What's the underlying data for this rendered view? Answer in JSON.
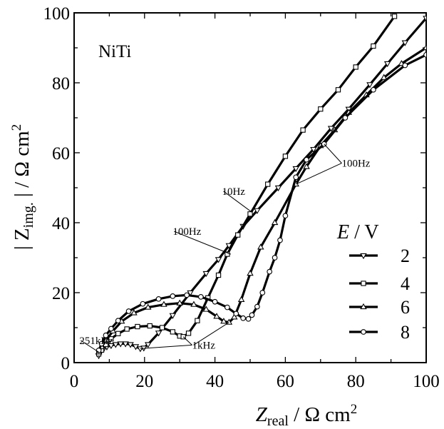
{
  "chart_data": {
    "type": "line",
    "title": "",
    "panel_label": "NiTi",
    "xlabel": {
      "main": "Z",
      "sub": "real",
      "unit": " / Ω cm",
      "sup": "2"
    },
    "ylabel": {
      "pre": "| Z",
      "sub": "img.",
      "post": " | / Ω cm",
      "sup": "2"
    },
    "xlim": [
      0,
      100
    ],
    "ylim": [
      0,
      100
    ],
    "x_ticks": [
      0,
      20,
      40,
      60,
      80,
      100
    ],
    "y_ticks": [
      0,
      20,
      40,
      60,
      80,
      100
    ],
    "grid": false,
    "legend": {
      "title_var": "E",
      "title_unit": " / V",
      "position": "right"
    },
    "series": [
      {
        "name": "2",
        "marker": "triangle-down",
        "points": [
          [
            7.0,
            2.0
          ],
          [
            7.5,
            3.0
          ],
          [
            8.3,
            3.8
          ],
          [
            9.3,
            4.5
          ],
          [
            10.5,
            4.9
          ],
          [
            11.8,
            5.2
          ],
          [
            13.2,
            5.4
          ],
          [
            14.6,
            5.4
          ],
          [
            16.0,
            5.2
          ],
          [
            17.5,
            4.6
          ],
          [
            18.8,
            4.0
          ],
          [
            19.8,
            4.2
          ],
          [
            21.0,
            5.2
          ],
          [
            24.0,
            8.5
          ],
          [
            28.0,
            13.5
          ],
          [
            33.0,
            20.0
          ],
          [
            37.5,
            25.5
          ],
          [
            41.0,
            29.5
          ],
          [
            44.0,
            33.5
          ],
          [
            48.0,
            39.0
          ],
          [
            52.0,
            43.5
          ],
          [
            58.0,
            50.0
          ],
          [
            63.0,
            55.5
          ],
          [
            68.0,
            61.0
          ],
          [
            73.0,
            67.0
          ],
          [
            78.0,
            72.5
          ],
          [
            84.0,
            79.5
          ],
          [
            89.0,
            85.5
          ],
          [
            94.0,
            91.5
          ],
          [
            100.0,
            98.5
          ]
        ]
      },
      {
        "name": "4",
        "marker": "square",
        "points": [
          [
            7.0,
            2.5
          ],
          [
            7.8,
            3.6
          ],
          [
            9.0,
            5.2
          ],
          [
            10.5,
            6.8
          ],
          [
            12.5,
            8.3
          ],
          [
            15.0,
            9.6
          ],
          [
            18.0,
            10.3
          ],
          [
            21.5,
            10.5
          ],
          [
            25.0,
            10.0
          ],
          [
            28.0,
            8.8
          ],
          [
            30.0,
            7.6
          ],
          [
            31.0,
            7.4
          ],
          [
            32.5,
            8.4
          ],
          [
            35.0,
            12.0
          ],
          [
            38.0,
            18.5
          ],
          [
            41.0,
            25.0
          ],
          [
            43.5,
            31.0
          ],
          [
            46.5,
            36.5
          ],
          [
            50.0,
            42.5
          ],
          [
            55.0,
            51.0
          ],
          [
            60.0,
            59.0
          ],
          [
            65.0,
            66.5
          ],
          [
            70.0,
            72.5
          ],
          [
            75.0,
            78.0
          ],
          [
            80.0,
            84.5
          ],
          [
            85.0,
            90.5
          ],
          [
            91.0,
            99.0
          ]
        ]
      },
      {
        "name": "6",
        "marker": "triangle-up",
        "points": [
          [
            7.0,
            3.0
          ],
          [
            7.8,
            4.5
          ],
          [
            9.2,
            6.5
          ],
          [
            11.0,
            9.0
          ],
          [
            13.5,
            11.8
          ],
          [
            17.0,
            14.2
          ],
          [
            21.0,
            15.8
          ],
          [
            25.5,
            16.6
          ],
          [
            30.0,
            17.0
          ],
          [
            34.0,
            16.6
          ],
          [
            37.5,
            15.2
          ],
          [
            40.5,
            13.2
          ],
          [
            42.5,
            11.8
          ],
          [
            44.0,
            11.5
          ],
          [
            45.5,
            13.0
          ],
          [
            47.5,
            18.0
          ],
          [
            50.0,
            25.5
          ],
          [
            53.0,
            33.0
          ],
          [
            57.0,
            40.0
          ],
          [
            63.0,
            51.0
          ],
          [
            66.0,
            56.0
          ],
          [
            70.0,
            62.0
          ],
          [
            74.0,
            66.5
          ],
          [
            78.0,
            71.5
          ],
          [
            83.0,
            76.5
          ],
          [
            88.0,
            81.5
          ],
          [
            93.0,
            85.5
          ],
          [
            100.0,
            90.0
          ]
        ]
      },
      {
        "name": "8",
        "marker": "circle",
        "points": [
          [
            7.0,
            3.5
          ],
          [
            7.8,
            5.4
          ],
          [
            9.0,
            7.8
          ],
          [
            10.5,
            9.7
          ],
          [
            12.5,
            12.0
          ],
          [
            15.5,
            14.7
          ],
          [
            19.5,
            16.8
          ],
          [
            24.0,
            18.2
          ],
          [
            28.0,
            19.0
          ],
          [
            32.0,
            19.3
          ],
          [
            36.0,
            18.8
          ],
          [
            40.0,
            17.4
          ],
          [
            43.5,
            15.8
          ],
          [
            46.0,
            14.0
          ],
          [
            48.0,
            12.7
          ],
          [
            49.5,
            12.5
          ],
          [
            50.5,
            13.6
          ],
          [
            52.0,
            16.0
          ],
          [
            53.5,
            20.0
          ],
          [
            55.5,
            26.0
          ],
          [
            57.0,
            30.0
          ],
          [
            58.5,
            35.0
          ],
          [
            60.0,
            42.0
          ],
          [
            63.0,
            53.0
          ],
          [
            66.0,
            58.0
          ],
          [
            71.0,
            62.5
          ],
          [
            77.0,
            70.0
          ],
          [
            85.0,
            78.0
          ],
          [
            94.0,
            85.0
          ],
          [
            100.0,
            88.0
          ]
        ]
      }
    ],
    "annotations": [
      {
        "text": "251kHz",
        "x": 1.5,
        "y": 5.3,
        "tx": 7.0,
        "ty": 3.0
      },
      {
        "text": "1kHz",
        "x": 33.5,
        "y": 4.0,
        "tx1": 18.8,
        "ty1": 4.0,
        "tx2": 31.0,
        "ty2": 7.4,
        "tx3": 44.0,
        "ty3": 11.5
      },
      {
        "text": "10Hz",
        "x": 42.0,
        "y": 48.0,
        "tx": 50.5,
        "ty": 43.0
      },
      {
        "text": "100Hz",
        "x": 28.0,
        "y": 36.5,
        "tx": 44.5,
        "ty": 31.0
      },
      {
        "text": "100Hz",
        "x": 76.0,
        "y": 56.0,
        "tx1": 71.0,
        "ty1": 62.5,
        "tx2": 63.0,
        "ty2": 51.0
      }
    ]
  }
}
